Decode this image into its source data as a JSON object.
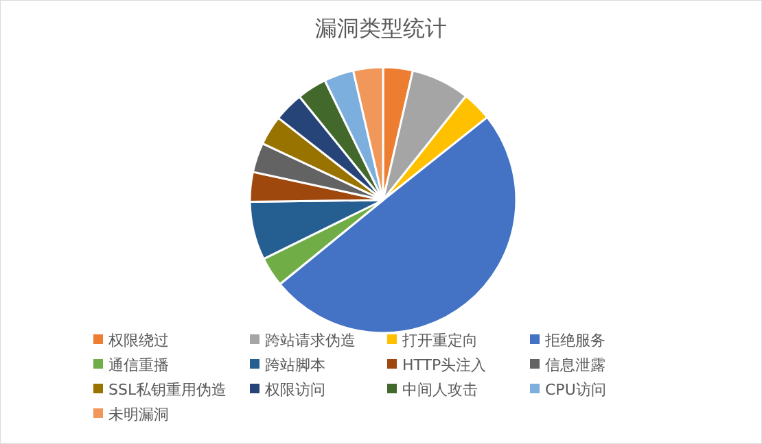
{
  "chart_data": {
    "type": "pie",
    "title": "漏洞类型统计",
    "categories": [
      "权限绕过",
      "跨站请求伪造",
      "打开重定向",
      "拒绝服务",
      "通信重播",
      "跨站脚本",
      "HTTP头注入",
      "信息泄露",
      "SSL私钥重用伪造",
      "权限访问",
      "中间人攻击",
      "CPU访问",
      "未明漏洞"
    ],
    "values": [
      3.6,
      7.1,
      3.6,
      49.8,
      3.6,
      7.1,
      3.6,
      3.6,
      3.6,
      3.6,
      3.6,
      3.6,
      3.6
    ],
    "colors": [
      "#ed7d31",
      "#a5a5a5",
      "#ffc000",
      "#4472c4",
      "#70ad47",
      "#255e91",
      "#9e480e",
      "#636363",
      "#997300",
      "#264478",
      "#43682b",
      "#7cafdd",
      "#f1975a"
    ],
    "legend": "bottom"
  }
}
